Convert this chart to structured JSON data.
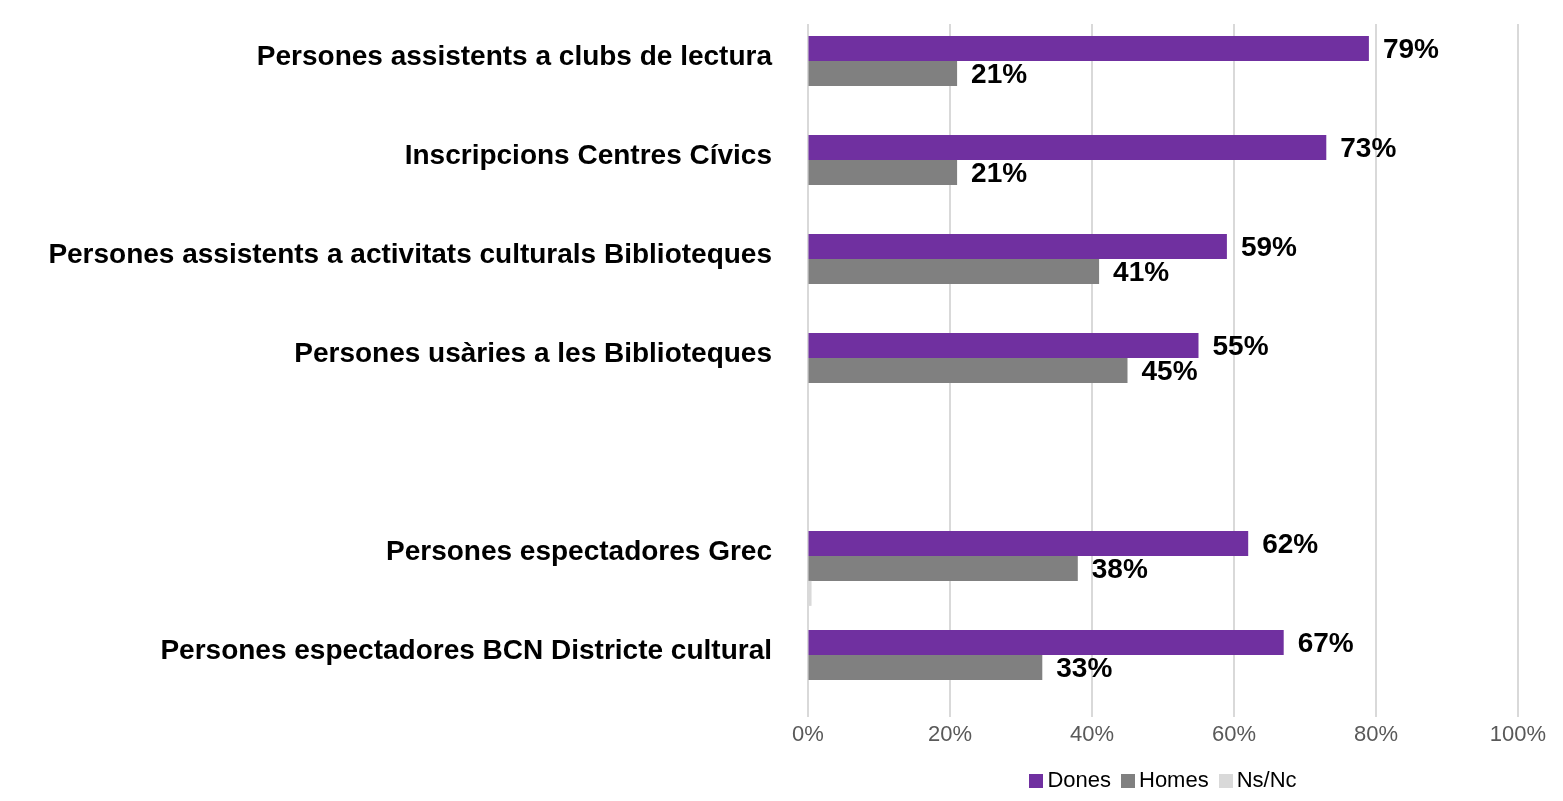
{
  "chart_data": {
    "type": "bar",
    "orientation": "horizontal",
    "categories": [
      "Persones assistents a clubs de lectura",
      "Inscripcions Centres Cívics",
      "Persones assistents a activitats culturals Biblioteques",
      "Persones usàries a les Biblioteques",
      null,
      "Persones espectadores Grec",
      "Persones espectadores BCN Districte cultural"
    ],
    "series": [
      {
        "name": "Dones",
        "color": "#7030a0",
        "values": [
          79,
          73,
          59,
          55,
          null,
          62,
          67
        ],
        "value_labels": [
          "79%",
          "73%",
          "59%",
          "55%",
          null,
          "62%",
          "67%"
        ]
      },
      {
        "name": "Homes",
        "color": "#808080",
        "values": [
          21,
          21,
          41,
          45,
          null,
          38,
          33
        ],
        "value_labels": [
          "21%",
          "21%",
          "41%",
          "45%",
          null,
          "38%",
          "33%"
        ]
      },
      {
        "name": "Ns/Nc",
        "color": "#d9d9d9",
        "values": [
          null,
          null,
          null,
          null,
          null,
          0.5,
          null
        ]
      }
    ],
    "xlim": [
      0,
      100
    ],
    "xticks": [
      {
        "value": 0,
        "label": "0%"
      },
      {
        "value": 20,
        "label": "20%"
      },
      {
        "value": 40,
        "label": "40%"
      },
      {
        "value": 60,
        "label": "60%"
      },
      {
        "value": 80,
        "label": "80%"
      },
      {
        "value": 100,
        "label": "100%"
      }
    ],
    "grid": "x",
    "legend": "bottom"
  }
}
